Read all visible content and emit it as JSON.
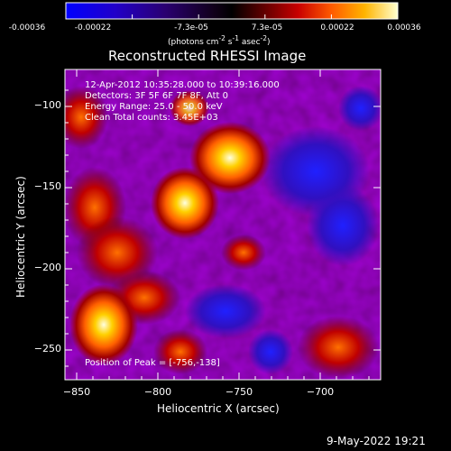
{
  "colorbar": {
    "ticks": [
      "-0.00036",
      "-0.00022",
      "-7.3e-05",
      "7.3e-05",
      "0.00022",
      "0.00036"
    ],
    "units_text": "(photons cm",
    "units_sup1": "-2",
    "units_mid": " s",
    "units_sup2": "-1",
    "units_mid2": " asec",
    "units_sup3": "-2",
    "units_end": ")",
    "range": [
      -0.00036,
      0.00036
    ],
    "colors": [
      "#0000ff",
      "#3000b0",
      "#2a0040",
      "#000000",
      "#400000",
      "#c00000",
      "#ff5000",
      "#ffa000",
      "#ffe000",
      "#ffffff"
    ]
  },
  "plot": {
    "title": "Reconstructed RHESSI Image",
    "annotation": {
      "time": "12-Apr-2012 10:35:28.000 to 10:39:16.000",
      "detectors": "Detectors: 3F 5F 6F 7F 8F, Att 0",
      "energy": "Energy Range: 25.0 - 50.0 keV",
      "clean": "Clean    Total counts: 3.45E+03"
    },
    "peak_label": "Position of Peak = [-756,-138]",
    "xlabel": "Heliocentric X (arcsec)",
    "ylabel": "Heliocentric Y (arcsec)",
    "xticks": [
      "−850",
      "−800",
      "−750",
      "−700"
    ],
    "yticks": [
      "−100",
      "−150",
      "−200",
      "−250"
    ],
    "xrange": [
      -862,
      -667
    ],
    "yrange": [
      -271,
      -78
    ]
  },
  "footer": {
    "timestamp": "9-May-2022 19:21"
  }
}
